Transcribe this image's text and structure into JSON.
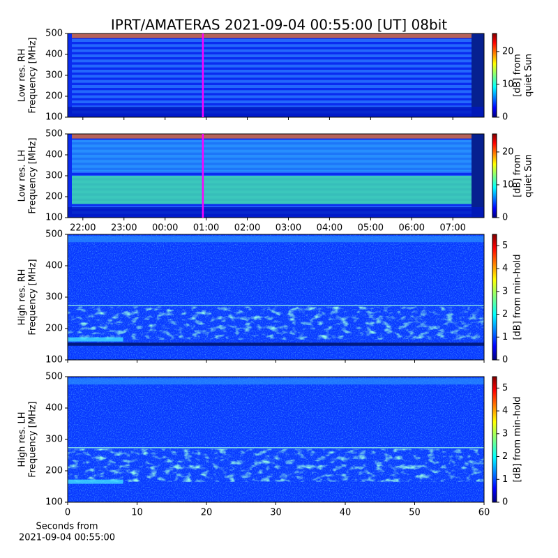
{
  "title": "IPRT/AMATERAS 2021-09-04 00:55:00 [UT]   08bit",
  "chart_data": [
    {
      "type": "heatmap",
      "ylabel": [
        "Low res. RH",
        "Frequency [MHz]"
      ],
      "ylim": [
        100,
        500
      ],
      "yticks": [
        100,
        200,
        300,
        400,
        500
      ],
      "xlim": [
        21.63,
        31.76
      ],
      "marker_x": 24.92,
      "marker_color": "#ff00ff",
      "colorbar_label": [
        "[dB] from",
        "quiet Sun"
      ],
      "clim": [
        0,
        25.5
      ],
      "cticks": [
        0,
        10,
        20
      ]
    },
    {
      "type": "heatmap",
      "ylabel": [
        "Low res. LH",
        "Frequency [MHz]"
      ],
      "ylim": [
        100,
        500
      ],
      "yticks": [
        100,
        200,
        300,
        400,
        500
      ],
      "xlim": [
        21.63,
        31.76
      ],
      "xticks": [
        {
          "value": 22,
          "label": "22:00"
        },
        {
          "value": 23,
          "label": "23:00"
        },
        {
          "value": 24,
          "label": "00:00"
        },
        {
          "value": 25,
          "label": "01:00"
        },
        {
          "value": 26,
          "label": "02:00"
        },
        {
          "value": 27,
          "label": "03:00"
        },
        {
          "value": 28,
          "label": "04:00"
        },
        {
          "value": 29,
          "label": "05:00"
        },
        {
          "value": 30,
          "label": "06:00"
        },
        {
          "value": 31,
          "label": "07:00"
        }
      ],
      "marker_x": 24.92,
      "marker_color": "#ff00ff",
      "colorbar_label": [
        "[dB] from",
        "quiet Sun"
      ],
      "clim": [
        0,
        25.5
      ],
      "cticks": [
        0,
        10,
        20
      ]
    },
    {
      "type": "heatmap",
      "ylabel": [
        "High res. RH",
        "Frequency [MHz]"
      ],
      "ylim": [
        100,
        500
      ],
      "yticks": [
        100,
        200,
        300,
        400,
        500
      ],
      "xlim": [
        0,
        60
      ],
      "colorbar_label": [
        "[dB] from min-hold"
      ],
      "clim": [
        0,
        5.5
      ],
      "cticks": [
        0,
        1,
        2,
        3,
        4,
        5
      ]
    },
    {
      "type": "heatmap",
      "ylabel": [
        "High res. LH",
        "Frequency [MHz]"
      ],
      "ylim": [
        100,
        500
      ],
      "yticks": [
        100,
        200,
        300,
        400,
        500
      ],
      "xlim": [
        0,
        60
      ],
      "xticks": [
        0,
        10,
        20,
        30,
        40,
        50,
        60
      ],
      "xlabel": [
        "Seconds from",
        "2021-09-04 00:55:00"
      ],
      "colorbar_label": [
        "[dB] from min-hold"
      ],
      "clim": [
        0,
        5.5
      ],
      "cticks": [
        0,
        1,
        2,
        3,
        4,
        5
      ]
    }
  ]
}
